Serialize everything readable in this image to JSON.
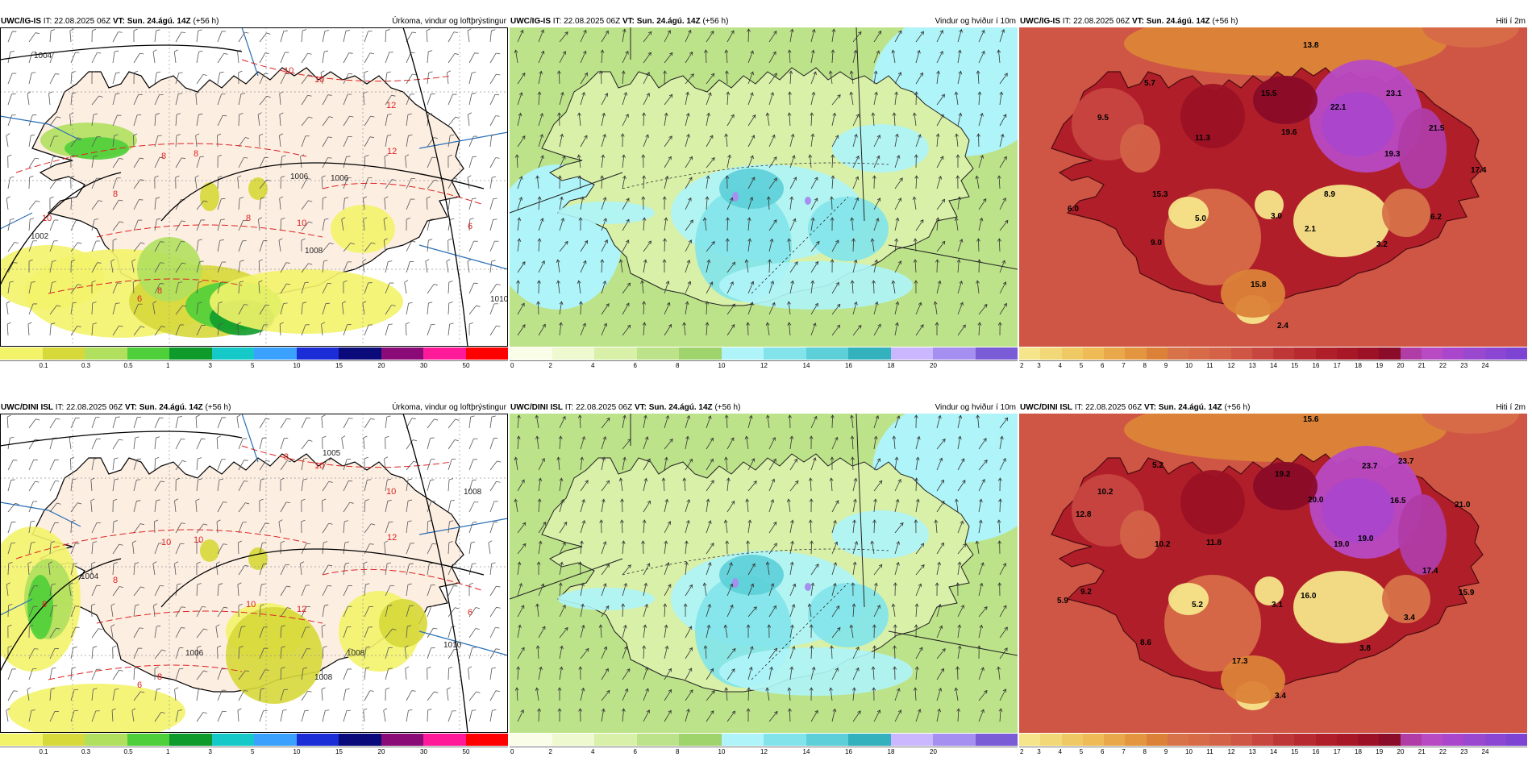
{
  "panels": [
    {
      "id": "r1c1",
      "model": "UWC/IG-IS",
      "it": "22.08.2025 06Z",
      "vt": "Sun. 24.ágú. 14Z",
      "lead": "(+56 h)",
      "title": "Úrkoma, vindur og loftþrýstingur",
      "type": "precip",
      "scale": [
        "0.1",
        "0.3",
        "0.5",
        "1",
        "3",
        "5",
        "10",
        "15",
        "20",
        "30",
        "50"
      ],
      "colors": [
        "#f3f36a",
        "#d7d83a",
        "#b0e05e",
        "#4fcf3a",
        "#0f9b2c",
        "#14c9c8",
        "#3ba1ff",
        "#1a2dd6",
        "#0a0a7a",
        "#8a0a78",
        "#ff1a9a",
        "#ff0000"
      ],
      "isobars": [
        "1004",
        "1006",
        "1006",
        "1008",
        "1010",
        "1002"
      ],
      "isotherms": [
        "10",
        "10",
        "12",
        "12",
        "10",
        "8",
        "8",
        "10",
        "8",
        "6",
        "6",
        "8",
        "8"
      ],
      "labels": []
    },
    {
      "id": "r1c2",
      "model": "UWC/IG-IS",
      "it": "22.08.2025 06Z",
      "vt": "Sun. 24.ágú. 14Z",
      "lead": "(+56 h)",
      "title": "Vindur og hviður í 10m",
      "type": "wind",
      "scale": [
        "0",
        "2",
        "4",
        "6",
        "8",
        "10",
        "12",
        "14",
        "16",
        "18",
        "20"
      ],
      "colors": [
        "#fafde8",
        "#eef9cf",
        "#d8f0a8",
        "#bde38a",
        "#9fd36c",
        "#aef4f8",
        "#82e4ea",
        "#5ccfd8",
        "#33b2bd",
        "#cbb7ff",
        "#a58ff0",
        "#7a5cd6"
      ],
      "labels": []
    },
    {
      "id": "r1c3",
      "model": "UWC/IG-IS",
      "it": "22.08.2025 06Z",
      "vt": "Sun. 24.ágú. 14Z",
      "lead": "(+56 h)",
      "title": "Hiti í 2m",
      "type": "temp",
      "scale": [
        "2",
        "3",
        "4",
        "5",
        "6",
        "7",
        "8",
        "9",
        "10",
        "11",
        "12",
        "13",
        "14",
        "15",
        "16",
        "17",
        "18",
        "19",
        "20",
        "21",
        "22",
        "23",
        "24"
      ],
      "colors": [
        "#f6e58a",
        "#f2d877",
        "#efca64",
        "#eebb57",
        "#e9a94b",
        "#e3963f",
        "#db8238",
        "#d77249",
        "#d76b48",
        "#d36247",
        "#cf5544",
        "#c84640",
        "#bf3636",
        "#b72a2f",
        "#b01f29",
        "#a81725",
        "#9c1125",
        "#8a0c28",
        "#b03ca6",
        "#b84ac4",
        "#a946cc",
        "#9b48d0",
        "#8b47d4",
        "#7d44d4"
      ],
      "labels": [
        "13.8",
        "5.7",
        "9.5",
        "15.5",
        "22.1",
        "23.1",
        "19.6",
        "11.3",
        "19.3",
        "21.5",
        "17.4",
        "15.3",
        "8.9",
        "6.0",
        "5.0",
        "3.0",
        "2.1",
        "6.2",
        "9.0",
        "3.2",
        "15.8",
        "2.4"
      ]
    },
    {
      "id": "r2c1",
      "model": "UWC/DINI ISL",
      "it": "22.08.2025 06Z",
      "vt": "Sun. 24.ágú. 14Z",
      "lead": "(+56 h)",
      "title": "Úrkoma, vindur og loftþrýstingur",
      "type": "precip",
      "scale": [
        "0.1",
        "0.3",
        "0.5",
        "1",
        "3",
        "5",
        "10",
        "15",
        "20",
        "30",
        "50"
      ],
      "colors": [
        "#f3f36a",
        "#d7d83a",
        "#b0e05e",
        "#4fcf3a",
        "#0f9b2c",
        "#14c9c8",
        "#3ba1ff",
        "#1a2dd6",
        "#0a0a7a",
        "#8a0a78",
        "#ff1a9a",
        "#ff0000"
      ],
      "isobars": [
        "1005",
        "1004",
        "1006",
        "1008",
        "1008",
        "1010",
        "1008"
      ],
      "isotherms": [
        "8",
        "10",
        "10",
        "12",
        "12",
        "10",
        "8",
        "8",
        "8",
        "6",
        "6",
        "10",
        "10"
      ],
      "labels": []
    },
    {
      "id": "r2c2",
      "model": "UWC/DINI ISL",
      "it": "22.08.2025 06Z",
      "vt": "Sun. 24.ágú. 14Z",
      "lead": "(+56 h)",
      "title": "Vindur og hviður í 10m",
      "type": "wind",
      "scale": [
        "0",
        "2",
        "4",
        "6",
        "8",
        "10",
        "12",
        "14",
        "16",
        "18",
        "20"
      ],
      "colors": [
        "#fafde8",
        "#eef9cf",
        "#d8f0a8",
        "#bde38a",
        "#9fd36c",
        "#aef4f8",
        "#82e4ea",
        "#5ccfd8",
        "#33b2bd",
        "#cbb7ff",
        "#a58ff0",
        "#7a5cd6"
      ],
      "labels": []
    },
    {
      "id": "r2c3",
      "model": "UWC/DINI ISL",
      "it": "22.08.2025 06Z",
      "vt": "Sun. 24.ágú. 14Z",
      "lead": "(+56 h)",
      "title": "Hiti í 2m",
      "type": "temp",
      "scale": [
        "2",
        "3",
        "4",
        "5",
        "6",
        "7",
        "8",
        "9",
        "10",
        "11",
        "12",
        "13",
        "14",
        "15",
        "16",
        "17",
        "18",
        "19",
        "20",
        "21",
        "22",
        "23",
        "24"
      ],
      "colors": [
        "#f6e58a",
        "#f2d877",
        "#efca64",
        "#eebb57",
        "#e9a94b",
        "#e3963f",
        "#db8238",
        "#d77249",
        "#d76b48",
        "#d36247",
        "#cf5544",
        "#c84640",
        "#bf3636",
        "#b72a2f",
        "#b01f29",
        "#a81725",
        "#9c1125",
        "#8a0c28",
        "#b03ca6",
        "#b84ac4",
        "#a946cc",
        "#9b48d0",
        "#8b47d4",
        "#7d44d4"
      ],
      "labels": [
        "15.6",
        "5.2",
        "10.2",
        "23.7",
        "23.7",
        "19.2",
        "12.8",
        "20.0",
        "16.5",
        "21.0",
        "10.2",
        "11.8",
        "19.0",
        "19.0",
        "17.4",
        "9.2",
        "5.9",
        "5.2",
        "3.1",
        "16.0",
        "15.9",
        "3.4",
        "8.6",
        "3.8",
        "17.3",
        "3.4"
      ]
    }
  ]
}
